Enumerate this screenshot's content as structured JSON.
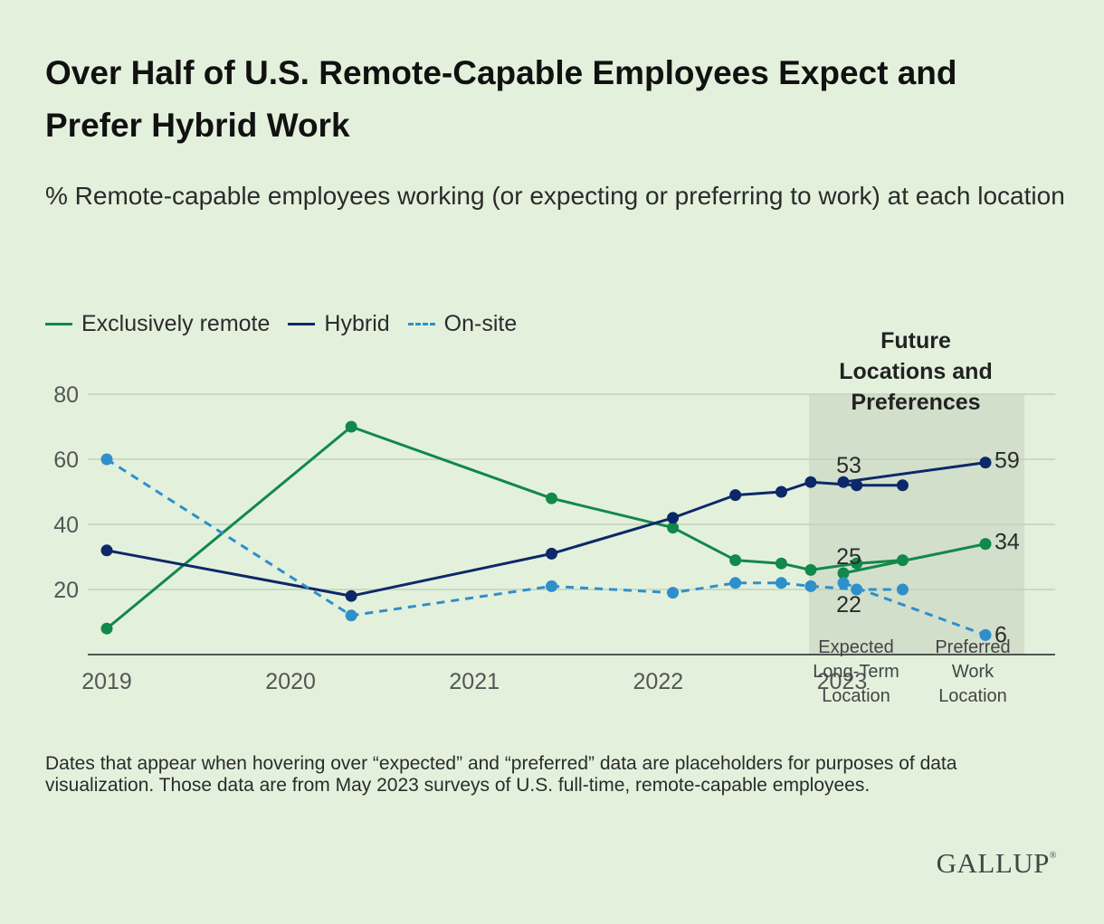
{
  "header": {
    "title": "Over Half of U.S. Remote-Capable Employees Expect and Prefer Hybrid Work",
    "subtitle": "% Remote-capable employees working (or expecting or preferring to work) at each location"
  },
  "legend": {
    "items": [
      {
        "label": "Exclusively remote",
        "color": "#12884a",
        "dashed": false
      },
      {
        "label": "Hybrid",
        "color": "#0d2869",
        "dashed": false
      },
      {
        "label": "On-site",
        "color": "#2f8fcb",
        "dashed": true
      }
    ]
  },
  "chart_data": {
    "type": "line",
    "title": "Over Half of U.S. Remote-Capable Employees Expect and Prefer Hybrid Work",
    "subtitle": "% Remote-capable employees working (or expecting or preferring to work) at each location",
    "xlabel": "",
    "ylabel": "",
    "ylim": [
      0,
      80
    ],
    "xlim": [
      2019,
      2023.5
    ],
    "yticks": [
      20,
      40,
      60,
      80
    ],
    "xticks": [
      2019,
      2020,
      2021,
      2022,
      2023
    ],
    "grid": true,
    "legend_position": "top-left",
    "series": [
      {
        "name": "Exclusively remote",
        "color": "#12884a",
        "dashed": false,
        "points": [
          {
            "x": 2019.0,
            "y": 8
          },
          {
            "x": 2020.33,
            "y": 70
          },
          {
            "x": 2021.42,
            "y": 48
          },
          {
            "x": 2022.08,
            "y": 39
          },
          {
            "x": 2022.42,
            "y": 29
          },
          {
            "x": 2022.67,
            "y": 28
          },
          {
            "x": 2022.83,
            "y": 26
          },
          {
            "x": 2023.08,
            "y": 28
          },
          {
            "x": 2023.33,
            "y": 29
          }
        ]
      },
      {
        "name": "Hybrid",
        "color": "#0d2869",
        "dashed": false,
        "points": [
          {
            "x": 2019.0,
            "y": 32
          },
          {
            "x": 2020.33,
            "y": 18
          },
          {
            "x": 2021.42,
            "y": 31
          },
          {
            "x": 2022.08,
            "y": 42
          },
          {
            "x": 2022.42,
            "y": 49
          },
          {
            "x": 2022.67,
            "y": 50
          },
          {
            "x": 2022.83,
            "y": 53
          },
          {
            "x": 2023.08,
            "y": 52
          },
          {
            "x": 2023.33,
            "y": 52
          }
        ]
      },
      {
        "name": "On-site",
        "color": "#2f8fcb",
        "dashed": true,
        "points": [
          {
            "x": 2019.0,
            "y": 60
          },
          {
            "x": 2020.33,
            "y": 12
          },
          {
            "x": 2021.42,
            "y": 21
          },
          {
            "x": 2022.08,
            "y": 19
          },
          {
            "x": 2022.42,
            "y": 22
          },
          {
            "x": 2022.67,
            "y": 22
          },
          {
            "x": 2022.83,
            "y": 21
          },
          {
            "x": 2023.08,
            "y": 20
          },
          {
            "x": 2023.33,
            "y": 20
          }
        ]
      }
    ],
    "future": {
      "title": "Future Locations and Preferences",
      "categories": [
        "Expected Long-Term Location",
        "Preferred Work Location"
      ],
      "series": [
        {
          "name": "Hybrid",
          "values": [
            53,
            59
          ]
        },
        {
          "name": "Exclusively remote",
          "values": [
            25,
            34
          ]
        },
        {
          "name": "On-site",
          "values": [
            22,
            6
          ]
        }
      ]
    }
  },
  "footer": {
    "note": "Dates that appear when hovering over “expected” and “preferred” data are placeholders for purposes of data visualization. Those data are from May 2023 surveys of U.S. full-time, remote-capable employees.",
    "logo": "GALLUP",
    "logo_mark": "®"
  }
}
